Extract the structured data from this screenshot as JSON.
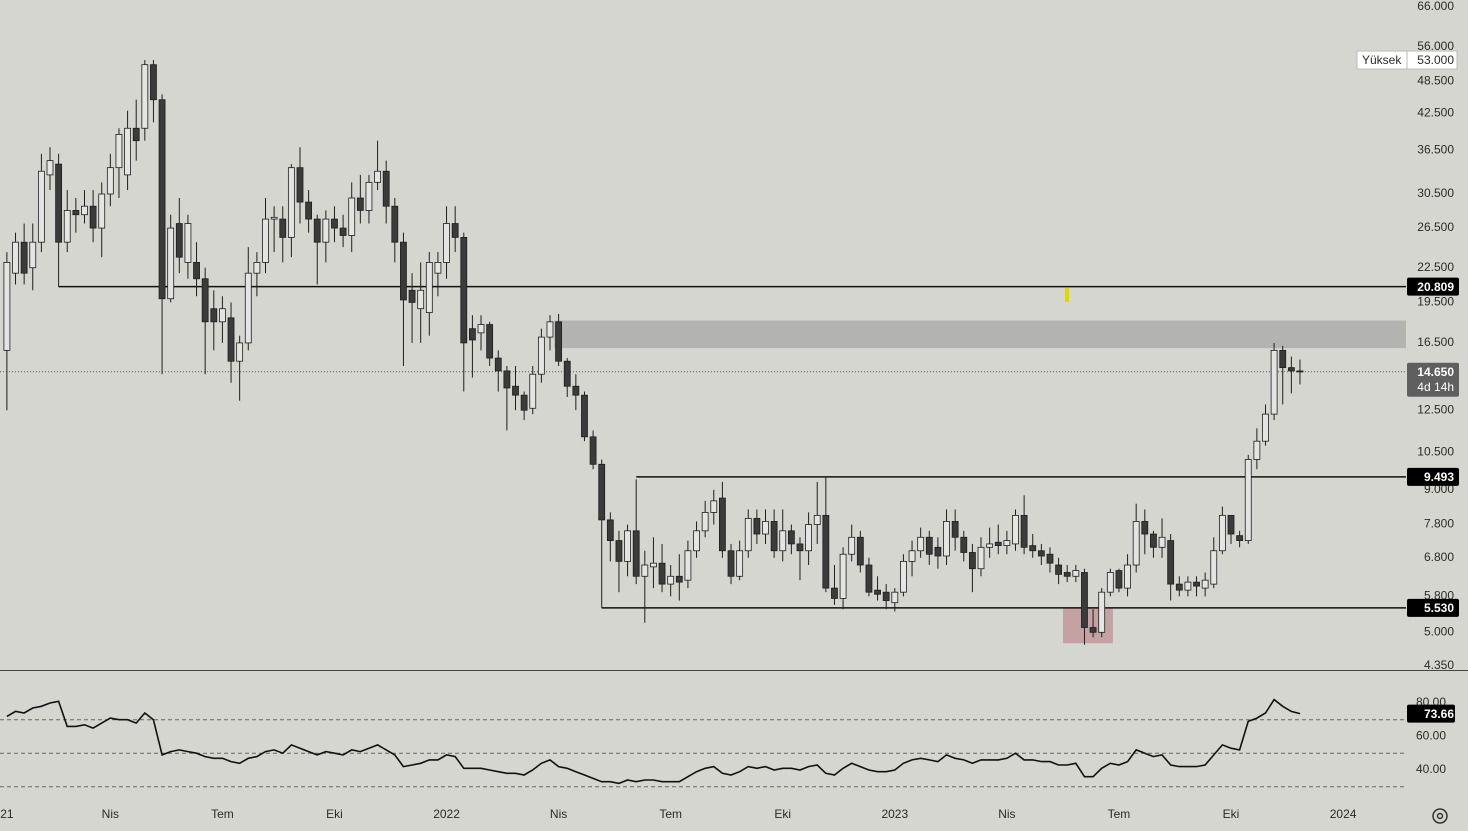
{
  "chart_data": [
    {
      "type": "candlestick",
      "log_scale": true,
      "ylim": [
        4.28,
        67.9
      ],
      "xlim": [
        -0.8,
        162.3
      ],
      "up_color": "#e4e4e2",
      "down_color": "#3b3b3b",
      "yticks": [
        {
          "value": 66,
          "label": "66.000"
        },
        {
          "value": 56,
          "label": "56.000"
        },
        {
          "value": 48.5,
          "label": "48.500"
        },
        {
          "value": 42.5,
          "label": "42.500"
        },
        {
          "value": 36.5,
          "label": "36.500"
        },
        {
          "value": 30.5,
          "label": "30.500"
        },
        {
          "value": 26.5,
          "label": "26.500"
        },
        {
          "value": 22.5,
          "label": "22.500"
        },
        {
          "value": 19.5,
          "label": "19.500"
        },
        {
          "value": 16.5,
          "label": "16.500"
        },
        {
          "value": 12.5,
          "label": "12.500"
        },
        {
          "value": 10.5,
          "label": "10.500"
        },
        {
          "value": 9,
          "label": "9.000"
        },
        {
          "value": 7.8,
          "label": "7.800"
        },
        {
          "value": 6.8,
          "label": "6.800"
        },
        {
          "value": 5.8,
          "label": "5.800"
        },
        {
          "value": 5,
          "label": "5.000"
        },
        {
          "value": 4.35,
          "label": "4.350"
        }
      ],
      "xticks": [
        {
          "value": 0,
          "label": "21"
        },
        {
          "value": 12,
          "label": "Nis"
        },
        {
          "value": 25,
          "label": "Tem"
        },
        {
          "value": 38,
          "label": "Eki"
        },
        {
          "value": 51,
          "label": "2022"
        },
        {
          "value": 64,
          "label": "Nis"
        },
        {
          "value": 77,
          "label": "Tem"
        },
        {
          "value": 90,
          "label": "Eki"
        },
        {
          "value": 103,
          "label": "2023"
        },
        {
          "value": 116,
          "label": "Nis"
        },
        {
          "value": 129,
          "label": "Tem"
        },
        {
          "value": 142,
          "label": "Eki"
        },
        {
          "value": 155,
          "label": "2024"
        }
      ],
      "levels": [
        {
          "value": 20.809,
          "label": "20.809",
          "from": 6
        },
        {
          "value": 9.493,
          "label": "9.493",
          "from": 73
        },
        {
          "value": 5.53,
          "label": "5.530",
          "from": 69
        }
      ],
      "zones": [
        {
          "from": 63.5,
          "top": 18.1,
          "bottom": 16.15,
          "color": "#b3b3b1"
        },
        {
          "from": 122.5,
          "to": 128.3,
          "top": 5.53,
          "bottom": 4.78,
          "color": "#c4a2a2"
        }
      ],
      "last_price": {
        "value": 14.65,
        "label": "14.650"
      },
      "countdown": "4d 14h",
      "high_label": {
        "name": "Yüksek",
        "value": 53,
        "label": "53.000"
      },
      "candles": [
        [
          16,
          24,
          12.5,
          23
        ],
        [
          22,
          26,
          21,
          25
        ],
        [
          25,
          27,
          21,
          22
        ],
        [
          22.5,
          27,
          20.5,
          25
        ],
        [
          25,
          36,
          24,
          33.5
        ],
        [
          33,
          37,
          31,
          35
        ],
        [
          34.5,
          36,
          20.8,
          25
        ],
        [
          25,
          31,
          24,
          28.5
        ],
        [
          28.5,
          30,
          26,
          28
        ],
        [
          28,
          31,
          27,
          29
        ],
        [
          29,
          31,
          25,
          26.5
        ],
        [
          26.5,
          32,
          23.5,
          30.5
        ],
        [
          30.5,
          36,
          29,
          34
        ],
        [
          34,
          40,
          30,
          39
        ],
        [
          33,
          43,
          31,
          40
        ],
        [
          40,
          45,
          35,
          38
        ],
        [
          40,
          53,
          38,
          52
        ],
        [
          52,
          53,
          41,
          45
        ],
        [
          45,
          46,
          14.5,
          19.8
        ],
        [
          19.8,
          28,
          19.5,
          26.5
        ],
        [
          27,
          30,
          22,
          23.5
        ],
        [
          23,
          28,
          21.5,
          27
        ],
        [
          23,
          25,
          20,
          21.5
        ],
        [
          21.5,
          22.5,
          14.5,
          18
        ],
        [
          19,
          20.5,
          16,
          18
        ],
        [
          18,
          20,
          16.5,
          19
        ],
        [
          18.3,
          19.5,
          14,
          15.3
        ],
        [
          15.3,
          17,
          13,
          16.5
        ],
        [
          16.5,
          24.5,
          16,
          22
        ],
        [
          22,
          24,
          20,
          23
        ],
        [
          23,
          30,
          22,
          27.5
        ],
        [
          27.5,
          29,
          24,
          27.7
        ],
        [
          27.5,
          29,
          23,
          25.5
        ],
        [
          25.5,
          34.5,
          23.5,
          34
        ],
        [
          34,
          37,
          27,
          29.5
        ],
        [
          29.5,
          31,
          26,
          27.5
        ],
        [
          27.5,
          28,
          21,
          25
        ],
        [
          25,
          28.5,
          23,
          27.5
        ],
        [
          27.5,
          29,
          25,
          26.5
        ],
        [
          26.5,
          28,
          24.5,
          25.7
        ],
        [
          25.7,
          32,
          24,
          30
        ],
        [
          30,
          33,
          27,
          28.5
        ],
        [
          28.5,
          33,
          27,
          32
        ],
        [
          32,
          38,
          31,
          33.5
        ],
        [
          33.5,
          35,
          27,
          29
        ],
        [
          29,
          30,
          23,
          25
        ],
        [
          25,
          26,
          15,
          19.7
        ],
        [
          20.5,
          22,
          16.5,
          19.5
        ],
        [
          19,
          23,
          16.5,
          20.5
        ],
        [
          18.7,
          24,
          17,
          23
        ],
        [
          22,
          24,
          20,
          23
        ],
        [
          23,
          29,
          21.5,
          27
        ],
        [
          27,
          29,
          24,
          25.5
        ],
        [
          25.5,
          26,
          13.5,
          16.5
        ],
        [
          17.5,
          18.5,
          14.3,
          16.7
        ],
        [
          17.2,
          18.5,
          16,
          17.8
        ],
        [
          17.8,
          18,
          15,
          15.5
        ],
        [
          15.5,
          16,
          13.5,
          14.7
        ],
        [
          14.7,
          15,
          11.5,
          13.7
        ],
        [
          13.8,
          15,
          12.5,
          13.3
        ],
        [
          13.3,
          13.5,
          12,
          12.5
        ],
        [
          12.6,
          15,
          12.3,
          14.5
        ],
        [
          14.5,
          17.5,
          14,
          16.9
        ],
        [
          16.9,
          18.5,
          16,
          18
        ],
        [
          18,
          18.6,
          15,
          15.3
        ],
        [
          15.3,
          15.5,
          13.2,
          13.8
        ],
        [
          13.8,
          14.5,
          12.5,
          13.3
        ],
        [
          13.3,
          13.5,
          11,
          11.2
        ],
        [
          11.2,
          11.5,
          9.8,
          10
        ],
        [
          10,
          10.2,
          5.53,
          7.95
        ],
        [
          7.95,
          8.2,
          6.7,
          7.3
        ],
        [
          7.3,
          7.6,
          5.9,
          6.7
        ],
        [
          6.7,
          7.8,
          6.3,
          7.6
        ],
        [
          7.6,
          9.4,
          6.1,
          6.3
        ],
        [
          6.3,
          7,
          5.2,
          6.6
        ],
        [
          6.55,
          7.4,
          6,
          6.65
        ],
        [
          6.65,
          7.2,
          5.9,
          6.1
        ],
        [
          6.1,
          6.6,
          5.8,
          6.3
        ],
        [
          6.3,
          6.9,
          5.7,
          6.15
        ],
        [
          6.2,
          7.3,
          6,
          7
        ],
        [
          7,
          7.9,
          6.8,
          7.6
        ],
        [
          7.6,
          8.6,
          7.4,
          8.2
        ],
        [
          8.2,
          9,
          7.8,
          8.6
        ],
        [
          8.7,
          9.3,
          6.8,
          7
        ],
        [
          7,
          7.2,
          6.1,
          6.3
        ],
        [
          6.3,
          7.3,
          6.2,
          7
        ],
        [
          7,
          8.3,
          6.8,
          8
        ],
        [
          8,
          8.3,
          7.2,
          7.5
        ],
        [
          7.5,
          8.3,
          7.2,
          7.9
        ],
        [
          7.9,
          8.3,
          6.8,
          7
        ],
        [
          7,
          8.3,
          6.7,
          7.6
        ],
        [
          7.6,
          7.8,
          6.9,
          7.2
        ],
        [
          7.2,
          7.4,
          6.2,
          7
        ],
        [
          7,
          8.2,
          6.6,
          7.8
        ],
        [
          7.8,
          9.3,
          7.2,
          8.1
        ],
        [
          8.1,
          9.5,
          5.9,
          6
        ],
        [
          6,
          6.6,
          5.6,
          5.75
        ],
        [
          5.75,
          7.1,
          5.5,
          6.9
        ],
        [
          6.9,
          7.8,
          6.7,
          7.4
        ],
        [
          7.4,
          7.6,
          6.4,
          6.6
        ],
        [
          6.6,
          6.8,
          5.8,
          5.9
        ],
        [
          5.95,
          6.3,
          5.7,
          5.85
        ],
        [
          5.9,
          6.1,
          5.5,
          5.7
        ],
        [
          5.65,
          6,
          5.45,
          5.9
        ],
        [
          5.9,
          6.9,
          5.8,
          6.7
        ],
        [
          6.7,
          7.3,
          6.3,
          7
        ],
        [
          7,
          7.7,
          6.8,
          7.4
        ],
        [
          7.4,
          7.6,
          6.6,
          6.9
        ],
        [
          7.1,
          7.4,
          6.5,
          6.85
        ],
        [
          6.85,
          8.3,
          6.6,
          7.9
        ],
        [
          7.9,
          8.3,
          7,
          7.4
        ],
        [
          7.4,
          7.6,
          6.7,
          6.95
        ],
        [
          6.95,
          7.2,
          5.9,
          6.5
        ],
        [
          6.5,
          7.4,
          6.3,
          7.1
        ],
        [
          7.1,
          7.7,
          6.8,
          7.2
        ],
        [
          7.25,
          7.8,
          6.9,
          7.15
        ],
        [
          7.15,
          7.6,
          6.9,
          7.3
        ],
        [
          7.2,
          8.3,
          7,
          8.1
        ],
        [
          8.1,
          8.8,
          6.9,
          7.1
        ],
        [
          7.15,
          7.5,
          6.8,
          7
        ],
        [
          7,
          7.2,
          6.6,
          6.85
        ],
        [
          6.9,
          7.1,
          6.4,
          6.65
        ],
        [
          6.6,
          6.8,
          6.1,
          6.35
        ],
        [
          6.4,
          6.6,
          6.15,
          6.3
        ],
        [
          6.3,
          6.6,
          6.15,
          6.45
        ],
        [
          6.4,
          6.5,
          4.75,
          5.1
        ],
        [
          5.1,
          5.5,
          4.9,
          5
        ],
        [
          5,
          6,
          4.9,
          5.9
        ],
        [
          5.9,
          6.5,
          5.8,
          6.4
        ],
        [
          6.45,
          6.5,
          5.9,
          6
        ],
        [
          6,
          6.9,
          5.8,
          6.6
        ],
        [
          6.6,
          8.5,
          6.4,
          7.9
        ],
        [
          7.9,
          8.3,
          6.9,
          7.5
        ],
        [
          7.5,
          7.6,
          6.8,
          7.1
        ],
        [
          7.1,
          8,
          6.8,
          7.4
        ],
        [
          7.3,
          7.5,
          5.7,
          6.1
        ],
        [
          6.1,
          6.3,
          5.8,
          5.95
        ],
        [
          5.95,
          6.3,
          5.8,
          6.15
        ],
        [
          6.15,
          6.3,
          5.8,
          6.05
        ],
        [
          6,
          6.4,
          5.8,
          6.2
        ],
        [
          6.1,
          7.4,
          6,
          7
        ],
        [
          7,
          8.4,
          6.9,
          8.1
        ],
        [
          8.1,
          8.1,
          7.2,
          7.5
        ],
        [
          7.45,
          7.6,
          7.1,
          7.3
        ],
        [
          7.3,
          10.4,
          7.2,
          10.2
        ],
        [
          10.2,
          11.6,
          9.8,
          11
        ],
        [
          11,
          12.8,
          10.8,
          12.3
        ],
        [
          12.3,
          16.5,
          12,
          16
        ],
        [
          16,
          16.3,
          12.8,
          14.9
        ],
        [
          14.9,
          15.6,
          13.4,
          14.7
        ],
        [
          14.7,
          15.4,
          13.9,
          14.65
        ]
      ]
    },
    {
      "type": "line",
      "color": "#111111",
      "ylim": [
        28.06,
        98.5
      ],
      "yticks": [
        {
          "value": 80,
          "label": "80.00"
        },
        {
          "value": 60,
          "label": "60.00"
        },
        {
          "value": 40,
          "label": "40.00"
        }
      ],
      "bands": [
        70,
        50,
        30
      ],
      "last": {
        "value": 73.66,
        "label": "73.66"
      },
      "values": [
        72,
        75,
        74,
        77,
        78,
        80,
        81,
        66,
        66,
        67,
        65,
        68,
        71,
        70,
        70,
        68,
        74,
        70,
        49,
        51,
        52,
        51,
        50,
        48,
        47,
        47,
        45,
        44,
        47,
        48,
        51,
        52,
        50,
        55,
        53,
        51,
        49,
        51,
        50,
        49,
        52,
        51,
        53,
        55,
        52,
        49,
        42,
        43,
        44,
        46,
        46,
        49,
        48,
        41,
        41,
        41,
        40,
        39,
        38,
        38,
        37,
        40,
        44,
        46,
        42,
        41,
        39,
        37,
        35,
        33,
        33,
        32,
        34,
        33,
        34,
        34,
        33,
        33,
        33,
        36,
        39,
        41,
        42,
        38,
        37,
        39,
        42,
        41,
        42,
        40,
        41,
        41,
        40,
        42,
        43,
        38,
        37,
        41,
        44,
        42,
        40,
        39,
        39,
        40,
        44,
        46,
        47,
        46,
        45,
        49,
        47,
        46,
        44,
        46,
        46,
        46,
        47,
        50,
        46,
        46,
        45,
        45,
        43,
        43,
        44,
        36,
        36,
        41,
        44,
        43,
        45,
        52,
        50,
        48,
        49,
        43,
        42,
        42,
        42,
        43,
        49,
        55,
        53,
        52,
        69,
        71,
        74,
        82,
        78,
        75,
        73.66
      ]
    }
  ]
}
